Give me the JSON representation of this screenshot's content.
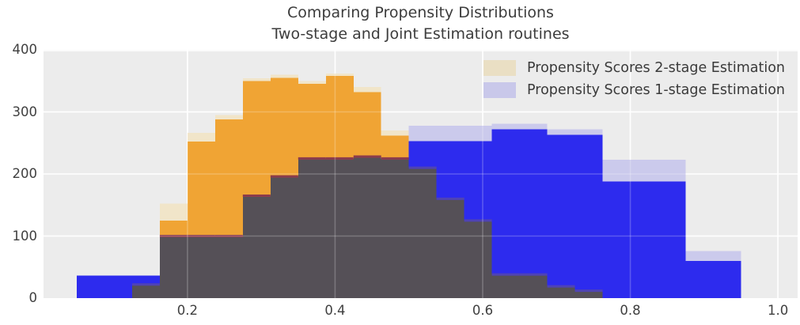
{
  "title": {
    "line1": "Comparing Propensity Distributions",
    "line2": "Two-stage and Joint Estimation routines"
  },
  "legend": {
    "position": "upper right",
    "items": [
      {
        "label": "Propensity Scores 2-stage Estimation",
        "swatch_color": "#eadfc4"
      },
      {
        "label": "Propensity Scores 1-stage Estimation",
        "swatch_color": "#c9c8ea"
      }
    ]
  },
  "axes": {
    "x_tick_labels": [
      "0.2",
      "0.4",
      "0.6",
      "0.8",
      "1.0"
    ],
    "x_tick_values": [
      0.2,
      0.4,
      0.6,
      0.8,
      1.0
    ],
    "y_tick_labels": [
      "0",
      "100",
      "200",
      "300",
      "400"
    ],
    "y_tick_values": [
      0,
      100,
      200,
      300,
      400
    ],
    "xlim": [
      0.005,
      1.0267
    ],
    "ylim": [
      0,
      400
    ],
    "grid": true,
    "grid_color": "#ffffff",
    "plot_background": "#ececec",
    "figure_background": "#ffffff",
    "text_color": "#3c3c3c"
  },
  "chart_data": {
    "type": "bar",
    "subtype": "overlaid-histograms",
    "title": "Comparing Propensity Distributions\nTwo-stage and Joint Estimation routines",
    "xlabel": "",
    "ylabel": "",
    "bin_start": 0.05,
    "bin_width": 0.0375,
    "n_bins": 25,
    "series": [
      {
        "name": "Propensity Scores 2-stage Estimation",
        "color": "#f0a434",
        "halo_color": "#f1e5c9",
        "counts": [
          0,
          0,
          22,
          125,
          252,
          288,
          350,
          355,
          345,
          358,
          332,
          262,
          210,
          160,
          125,
          38,
          38,
          19,
          12,
          0,
          0,
          0,
          0,
          0,
          0
        ],
        "halo_counts": [
          0,
          0,
          26,
          152,
          266,
          295,
          354,
          360,
          350,
          362,
          340,
          270,
          215,
          165,
          130,
          52,
          44,
          23,
          15,
          0,
          0,
          0,
          0,
          0,
          0
        ]
      },
      {
        "name": "Propensity Scores 1-stage Estimation",
        "color": "#2d2bee",
        "halo_color": "#cbcaec",
        "counts": [
          36,
          36,
          36,
          100,
          100,
          100,
          165,
          196,
          225,
          225,
          228,
          225,
          253,
          253,
          253,
          272,
          272,
          263,
          263,
          188,
          188,
          188,
          60,
          60,
          0
        ],
        "halo_counts": [
          36,
          36,
          36,
          100,
          100,
          100,
          165,
          196,
          225,
          225,
          228,
          225,
          278,
          278,
          278,
          281,
          281,
          272,
          272,
          223,
          223,
          223,
          76,
          76,
          0
        ]
      }
    ],
    "overlap_color": "#555057",
    "overlap_rule": "min(series0, series1) per bin",
    "edge_color_orange_over_blue": "#8b3c4c",
    "edge_color_blue_over_orange": "#4f43b5"
  }
}
